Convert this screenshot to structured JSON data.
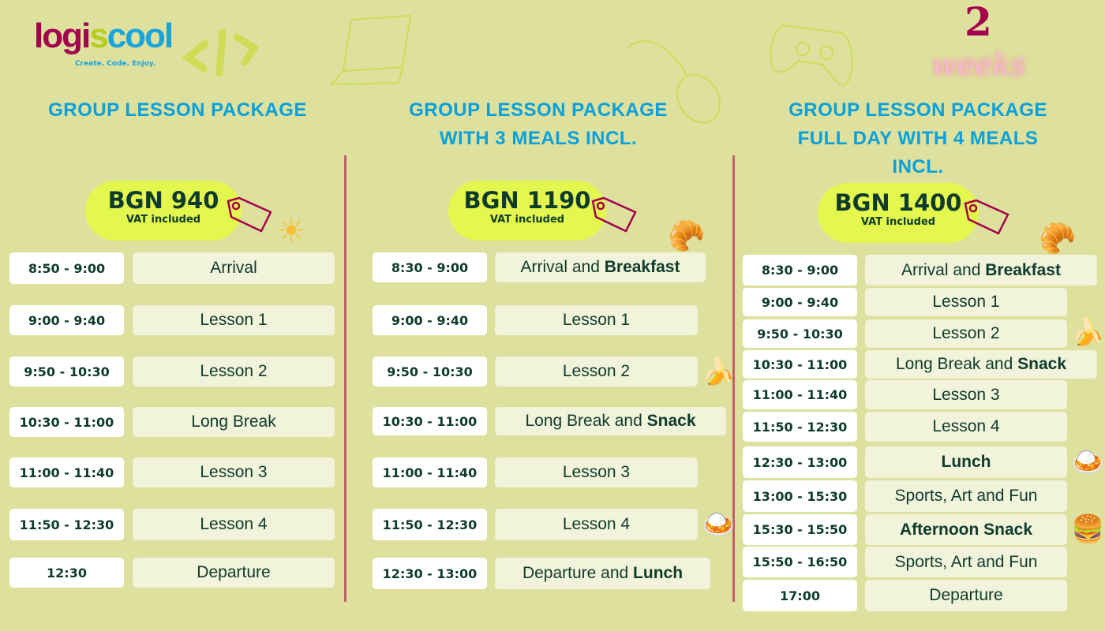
{
  "brand": {
    "name_a": "logi",
    "name_b": "s",
    "name_c": "cool",
    "tagline": "Create. Code. Enjoy."
  },
  "badge": {
    "number": "2",
    "word": "weeks"
  },
  "colors": {
    "background": "#dde19d",
    "title": "#0aa0dc",
    "price_pill": "#e4f74e",
    "divider": "#c0606a",
    "text": "#0e3b2c",
    "accent": "#a3004e"
  },
  "columns": [
    {
      "title": [
        "GROUP LESSON PACKAGE"
      ],
      "price": "BGN 940",
      "vat": "VAT included",
      "rows": [
        {
          "time": "8:50 - 9:00",
          "label": "Arrival",
          "bold": ""
        },
        {
          "time": "9:00 - 9:40",
          "label": "Lesson 1",
          "bold": ""
        },
        {
          "time": "9:50 - 10:30",
          "label": "Lesson 2",
          "bold": ""
        },
        {
          "time": "10:30 - 11:00",
          "label": "Long Break",
          "bold": ""
        },
        {
          "time": "11:00 - 11:40",
          "label": "Lesson 3",
          "bold": ""
        },
        {
          "time": "11:50 - 12:30",
          "label": "Lesson 4",
          "bold": ""
        },
        {
          "time": "12:30",
          "label": "Departure",
          "bold": ""
        }
      ]
    },
    {
      "title": [
        "GROUP LESSON PACKAGE",
        "WITH 3 MEALS INCL."
      ],
      "price": "BGN 1190",
      "vat": "VAT included",
      "rows": [
        {
          "time": "8:30 - 9:00",
          "label": "Arrival and ",
          "bold": "Breakfast"
        },
        {
          "time": "9:00 - 9:40",
          "label": "Lesson 1",
          "bold": ""
        },
        {
          "time": "9:50 - 10:30",
          "label": "Lesson 2",
          "bold": ""
        },
        {
          "time": "10:30 - 11:00",
          "label": "Long Break and ",
          "bold": "Snack"
        },
        {
          "time": "11:00 - 11:40",
          "label": "Lesson 3",
          "bold": ""
        },
        {
          "time": "11:50 - 12:30",
          "label": "Lesson 4",
          "bold": ""
        },
        {
          "time": "12:30 - 13:00",
          "label": "Departure and ",
          "bold": "Lunch"
        }
      ]
    },
    {
      "title": [
        "GROUP LESSON PACKAGE",
        "FULL DAY WITH 4 MEALS",
        "INCL."
      ],
      "price": "BGN 1400",
      "vat": "VAT included",
      "rows": [
        {
          "time": "8:30 - 9:00",
          "label": "Arrival and ",
          "bold": "Breakfast"
        },
        {
          "time": "9:00 - 9:40",
          "label": "Lesson 1",
          "bold": ""
        },
        {
          "time": "9:50 - 10:30",
          "label": "Lesson 2",
          "bold": ""
        },
        {
          "time": "10:30 - 11:00",
          "label": "Long Break and ",
          "bold": "Snack"
        },
        {
          "time": "11:00 - 11:40",
          "label": "Lesson 3",
          "bold": ""
        },
        {
          "time": "11:50 - 12:30",
          "label": "Lesson 4",
          "bold": ""
        },
        {
          "time": "12:30 - 13:00",
          "label": "",
          "bold": "Lunch"
        },
        {
          "time": "13:00 - 15:30",
          "label": "Sports, Art and Fun",
          "bold": ""
        },
        {
          "time": "15:30 - 15:50",
          "label": "",
          "bold": "Afternoon Snack"
        },
        {
          "time": "15:50 - 16:50",
          "label": "Sports, Art and Fun",
          "bold": ""
        },
        {
          "time": "17:00",
          "label": "Departure",
          "bold": ""
        }
      ]
    }
  ]
}
